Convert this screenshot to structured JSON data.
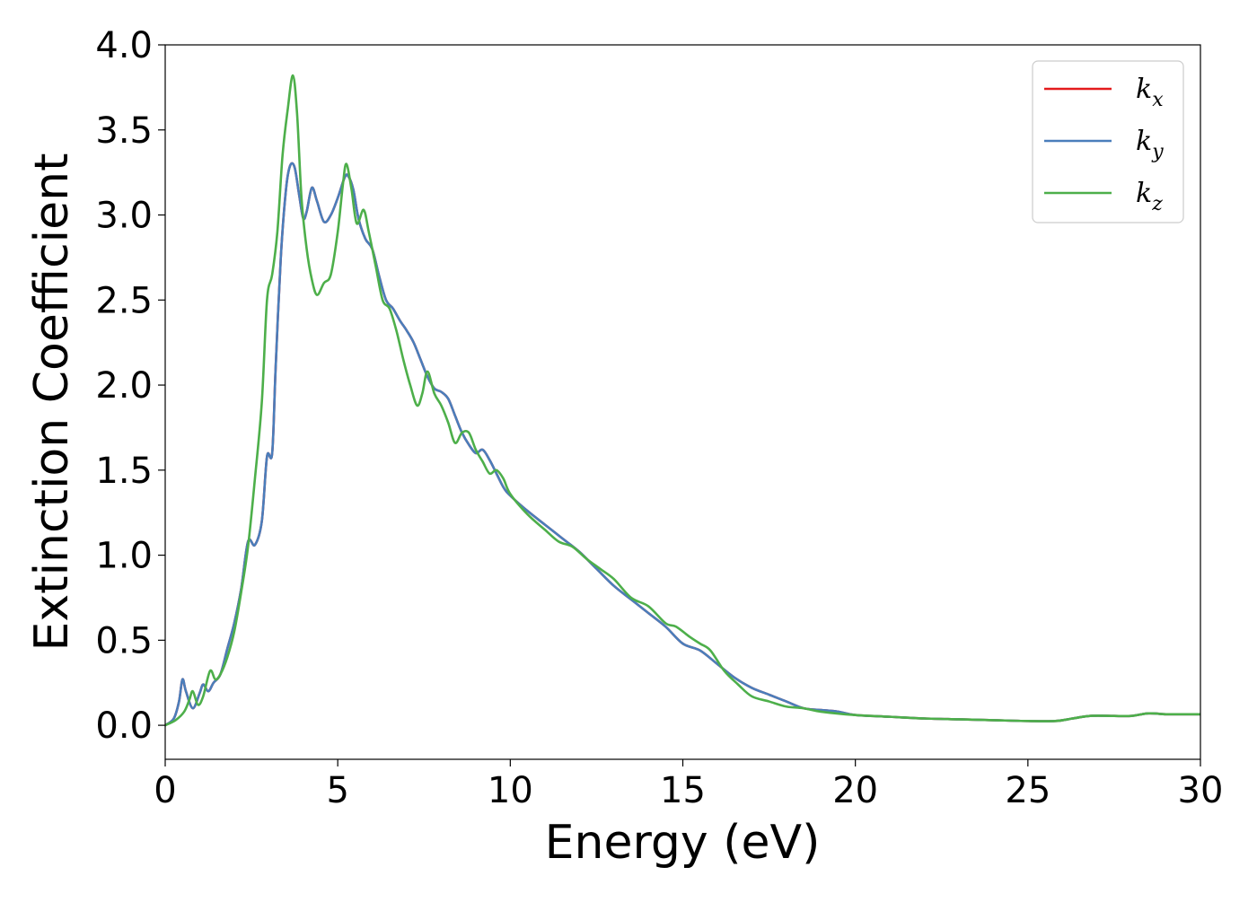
{
  "chart_data": {
    "type": "line",
    "title": "",
    "xlabel": "Energy (eV)",
    "ylabel": "Extinction Coefficient",
    "xlim": [
      0,
      30
    ],
    "ylim": [
      -0.2,
      4.0
    ],
    "xticks": [
      0,
      5,
      10,
      15,
      20,
      25,
      30
    ],
    "xtick_labels": [
      "0",
      "5",
      "10",
      "15",
      "20",
      "25",
      "30"
    ],
    "yticks": [
      0.0,
      0.5,
      1.0,
      1.5,
      2.0,
      2.5,
      3.0,
      3.5,
      4.0
    ],
    "ytick_labels": [
      "0.0",
      "0.5",
      "1.0",
      "1.5",
      "2.0",
      "2.5",
      "3.0",
      "3.5",
      "4.0"
    ],
    "grid": false,
    "legend_position": "top-right",
    "series": [
      {
        "name": "k_x",
        "label_main": "k",
        "label_sub": "x",
        "color": "#e41a1c",
        "points": [
          [
            0,
            0.0
          ],
          [
            0.25,
            0.04
          ],
          [
            0.4,
            0.14
          ],
          [
            0.5,
            0.27
          ],
          [
            0.6,
            0.2
          ],
          [
            0.8,
            0.1
          ],
          [
            1.0,
            0.19
          ],
          [
            1.1,
            0.24
          ],
          [
            1.25,
            0.2
          ],
          [
            1.4,
            0.25
          ],
          [
            1.6,
            0.3
          ],
          [
            1.8,
            0.45
          ],
          [
            2.0,
            0.6
          ],
          [
            2.2,
            0.8
          ],
          [
            2.4,
            1.08
          ],
          [
            2.6,
            1.06
          ],
          [
            2.8,
            1.2
          ],
          [
            2.95,
            1.58
          ],
          [
            3.1,
            1.6
          ],
          [
            3.2,
            2.1
          ],
          [
            3.35,
            2.75
          ],
          [
            3.5,
            3.15
          ],
          [
            3.62,
            3.29
          ],
          [
            3.75,
            3.28
          ],
          [
            3.88,
            3.12
          ],
          [
            4.0,
            2.98
          ],
          [
            4.1,
            3.02
          ],
          [
            4.25,
            3.16
          ],
          [
            4.4,
            3.08
          ],
          [
            4.6,
            2.96
          ],
          [
            4.8,
            3.0
          ],
          [
            5.0,
            3.1
          ],
          [
            5.2,
            3.22
          ],
          [
            5.3,
            3.23
          ],
          [
            5.45,
            3.15
          ],
          [
            5.6,
            2.98
          ],
          [
            5.8,
            2.86
          ],
          [
            6.0,
            2.8
          ],
          [
            6.2,
            2.64
          ],
          [
            6.4,
            2.5
          ],
          [
            6.6,
            2.45
          ],
          [
            6.8,
            2.38
          ],
          [
            7.0,
            2.32
          ],
          [
            7.2,
            2.25
          ],
          [
            7.4,
            2.15
          ],
          [
            7.6,
            2.05
          ],
          [
            7.8,
            1.98
          ],
          [
            8.0,
            1.96
          ],
          [
            8.2,
            1.92
          ],
          [
            8.4,
            1.82
          ],
          [
            8.6,
            1.72
          ],
          [
            8.8,
            1.65
          ],
          [
            9.0,
            1.6
          ],
          [
            9.2,
            1.62
          ],
          [
            9.4,
            1.56
          ],
          [
            9.6,
            1.48
          ],
          [
            9.8,
            1.4
          ],
          [
            10.0,
            1.35
          ],
          [
            10.5,
            1.26
          ],
          [
            11.0,
            1.18
          ],
          [
            11.5,
            1.1
          ],
          [
            12.0,
            1.02
          ],
          [
            12.5,
            0.92
          ],
          [
            13.0,
            0.82
          ],
          [
            13.5,
            0.74
          ],
          [
            14.0,
            0.66
          ],
          [
            14.5,
            0.58
          ],
          [
            15.0,
            0.48
          ],
          [
            15.5,
            0.44
          ],
          [
            16.0,
            0.36
          ],
          [
            16.5,
            0.28
          ],
          [
            17.0,
            0.22
          ],
          [
            17.5,
            0.18
          ],
          [
            18.0,
            0.14
          ],
          [
            18.5,
            0.1
          ],
          [
            19.0,
            0.09
          ],
          [
            19.5,
            0.08
          ],
          [
            20.0,
            0.06
          ],
          [
            21.0,
            0.05
          ],
          [
            22.0,
            0.04
          ],
          [
            23.0,
            0.035
          ],
          [
            24.0,
            0.03
          ],
          [
            25.0,
            0.025
          ],
          [
            25.8,
            0.025
          ],
          [
            26.3,
            0.04
          ],
          [
            26.8,
            0.055
          ],
          [
            27.5,
            0.055
          ],
          [
            28.0,
            0.055
          ],
          [
            28.5,
            0.07
          ],
          [
            29.0,
            0.065
          ],
          [
            29.5,
            0.065
          ],
          [
            30.0,
            0.065
          ]
        ]
      },
      {
        "name": "k_y",
        "label_main": "k",
        "label_sub": "y",
        "color": "#4a7ebb",
        "points": [
          [
            0,
            0.0
          ],
          [
            0.25,
            0.04
          ],
          [
            0.4,
            0.14
          ],
          [
            0.5,
            0.27
          ],
          [
            0.6,
            0.2
          ],
          [
            0.8,
            0.1
          ],
          [
            1.0,
            0.19
          ],
          [
            1.1,
            0.24
          ],
          [
            1.25,
            0.2
          ],
          [
            1.4,
            0.25
          ],
          [
            1.6,
            0.3
          ],
          [
            1.8,
            0.45
          ],
          [
            2.0,
            0.6
          ],
          [
            2.2,
            0.8
          ],
          [
            2.4,
            1.08
          ],
          [
            2.6,
            1.06
          ],
          [
            2.8,
            1.2
          ],
          [
            2.95,
            1.58
          ],
          [
            3.1,
            1.6
          ],
          [
            3.2,
            2.1
          ],
          [
            3.35,
            2.75
          ],
          [
            3.5,
            3.15
          ],
          [
            3.62,
            3.29
          ],
          [
            3.75,
            3.28
          ],
          [
            3.88,
            3.12
          ],
          [
            4.0,
            2.98
          ],
          [
            4.1,
            3.02
          ],
          [
            4.25,
            3.16
          ],
          [
            4.4,
            3.08
          ],
          [
            4.6,
            2.96
          ],
          [
            4.8,
            3.0
          ],
          [
            5.0,
            3.1
          ],
          [
            5.2,
            3.22
          ],
          [
            5.3,
            3.23
          ],
          [
            5.45,
            3.15
          ],
          [
            5.6,
            2.98
          ],
          [
            5.8,
            2.86
          ],
          [
            6.0,
            2.8
          ],
          [
            6.2,
            2.64
          ],
          [
            6.4,
            2.5
          ],
          [
            6.6,
            2.45
          ],
          [
            6.8,
            2.38
          ],
          [
            7.0,
            2.32
          ],
          [
            7.2,
            2.25
          ],
          [
            7.4,
            2.15
          ],
          [
            7.6,
            2.05
          ],
          [
            7.8,
            1.98
          ],
          [
            8.0,
            1.96
          ],
          [
            8.2,
            1.92
          ],
          [
            8.4,
            1.82
          ],
          [
            8.6,
            1.72
          ],
          [
            8.8,
            1.65
          ],
          [
            9.0,
            1.6
          ],
          [
            9.2,
            1.62
          ],
          [
            9.4,
            1.56
          ],
          [
            9.6,
            1.48
          ],
          [
            9.8,
            1.4
          ],
          [
            10.0,
            1.35
          ],
          [
            10.5,
            1.26
          ],
          [
            11.0,
            1.18
          ],
          [
            11.5,
            1.1
          ],
          [
            12.0,
            1.02
          ],
          [
            12.5,
            0.92
          ],
          [
            13.0,
            0.82
          ],
          [
            13.5,
            0.74
          ],
          [
            14.0,
            0.66
          ],
          [
            14.5,
            0.58
          ],
          [
            15.0,
            0.48
          ],
          [
            15.5,
            0.44
          ],
          [
            16.0,
            0.36
          ],
          [
            16.5,
            0.28
          ],
          [
            17.0,
            0.22
          ],
          [
            17.5,
            0.18
          ],
          [
            18.0,
            0.14
          ],
          [
            18.5,
            0.1
          ],
          [
            19.0,
            0.09
          ],
          [
            19.5,
            0.08
          ],
          [
            20.0,
            0.06
          ],
          [
            21.0,
            0.05
          ],
          [
            22.0,
            0.04
          ],
          [
            23.0,
            0.035
          ],
          [
            24.0,
            0.03
          ],
          [
            25.0,
            0.025
          ],
          [
            25.8,
            0.025
          ],
          [
            26.3,
            0.04
          ],
          [
            26.8,
            0.055
          ],
          [
            27.5,
            0.055
          ],
          [
            28.0,
            0.055
          ],
          [
            28.5,
            0.07
          ],
          [
            29.0,
            0.065
          ],
          [
            29.5,
            0.065
          ],
          [
            30.0,
            0.065
          ]
        ]
      },
      {
        "name": "k_z",
        "label_main": "k",
        "label_sub": "z",
        "color": "#4daf4a",
        "points": [
          [
            0,
            0.0
          ],
          [
            0.3,
            0.03
          ],
          [
            0.55,
            0.08
          ],
          [
            0.7,
            0.15
          ],
          [
            0.8,
            0.2
          ],
          [
            0.95,
            0.12
          ],
          [
            1.1,
            0.17
          ],
          [
            1.3,
            0.32
          ],
          [
            1.45,
            0.27
          ],
          [
            1.6,
            0.3
          ],
          [
            1.8,
            0.4
          ],
          [
            2.0,
            0.55
          ],
          [
            2.2,
            0.78
          ],
          [
            2.4,
            1.05
          ],
          [
            2.6,
            1.45
          ],
          [
            2.8,
            1.9
          ],
          [
            2.95,
            2.5
          ],
          [
            3.1,
            2.65
          ],
          [
            3.25,
            2.9
          ],
          [
            3.4,
            3.35
          ],
          [
            3.55,
            3.62
          ],
          [
            3.7,
            3.82
          ],
          [
            3.82,
            3.6
          ],
          [
            3.95,
            3.1
          ],
          [
            4.1,
            2.8
          ],
          [
            4.25,
            2.62
          ],
          [
            4.4,
            2.53
          ],
          [
            4.6,
            2.6
          ],
          [
            4.8,
            2.65
          ],
          [
            5.0,
            2.9
          ],
          [
            5.15,
            3.18
          ],
          [
            5.25,
            3.3
          ],
          [
            5.4,
            3.15
          ],
          [
            5.55,
            2.95
          ],
          [
            5.75,
            3.03
          ],
          [
            5.9,
            2.9
          ],
          [
            6.1,
            2.7
          ],
          [
            6.3,
            2.5
          ],
          [
            6.5,
            2.45
          ],
          [
            6.7,
            2.32
          ],
          [
            6.9,
            2.15
          ],
          [
            7.1,
            2.0
          ],
          [
            7.3,
            1.88
          ],
          [
            7.45,
            1.95
          ],
          [
            7.6,
            2.08
          ],
          [
            7.8,
            1.95
          ],
          [
            8.0,
            1.88
          ],
          [
            8.2,
            1.78
          ],
          [
            8.4,
            1.66
          ],
          [
            8.6,
            1.72
          ],
          [
            8.8,
            1.72
          ],
          [
            9.0,
            1.62
          ],
          [
            9.2,
            1.55
          ],
          [
            9.4,
            1.48
          ],
          [
            9.6,
            1.5
          ],
          [
            9.8,
            1.45
          ],
          [
            10.0,
            1.36
          ],
          [
            10.5,
            1.24
          ],
          [
            11.0,
            1.15
          ],
          [
            11.4,
            1.08
          ],
          [
            11.8,
            1.05
          ],
          [
            12.2,
            0.98
          ],
          [
            12.6,
            0.92
          ],
          [
            13.0,
            0.86
          ],
          [
            13.5,
            0.75
          ],
          [
            14.0,
            0.7
          ],
          [
            14.5,
            0.6
          ],
          [
            14.8,
            0.58
          ],
          [
            15.2,
            0.52
          ],
          [
            15.5,
            0.48
          ],
          [
            15.8,
            0.44
          ],
          [
            16.2,
            0.32
          ],
          [
            16.6,
            0.24
          ],
          [
            17.0,
            0.17
          ],
          [
            17.5,
            0.14
          ],
          [
            18.0,
            0.11
          ],
          [
            18.5,
            0.1
          ],
          [
            19.0,
            0.08
          ],
          [
            20.0,
            0.06
          ],
          [
            21.0,
            0.05
          ],
          [
            22.0,
            0.04
          ],
          [
            23.0,
            0.035
          ],
          [
            24.0,
            0.03
          ],
          [
            25.0,
            0.025
          ],
          [
            25.8,
            0.025
          ],
          [
            26.3,
            0.04
          ],
          [
            26.8,
            0.055
          ],
          [
            27.5,
            0.055
          ],
          [
            28.0,
            0.055
          ],
          [
            28.5,
            0.07
          ],
          [
            29.0,
            0.065
          ],
          [
            29.5,
            0.065
          ],
          [
            30.0,
            0.065
          ]
        ]
      }
    ]
  }
}
